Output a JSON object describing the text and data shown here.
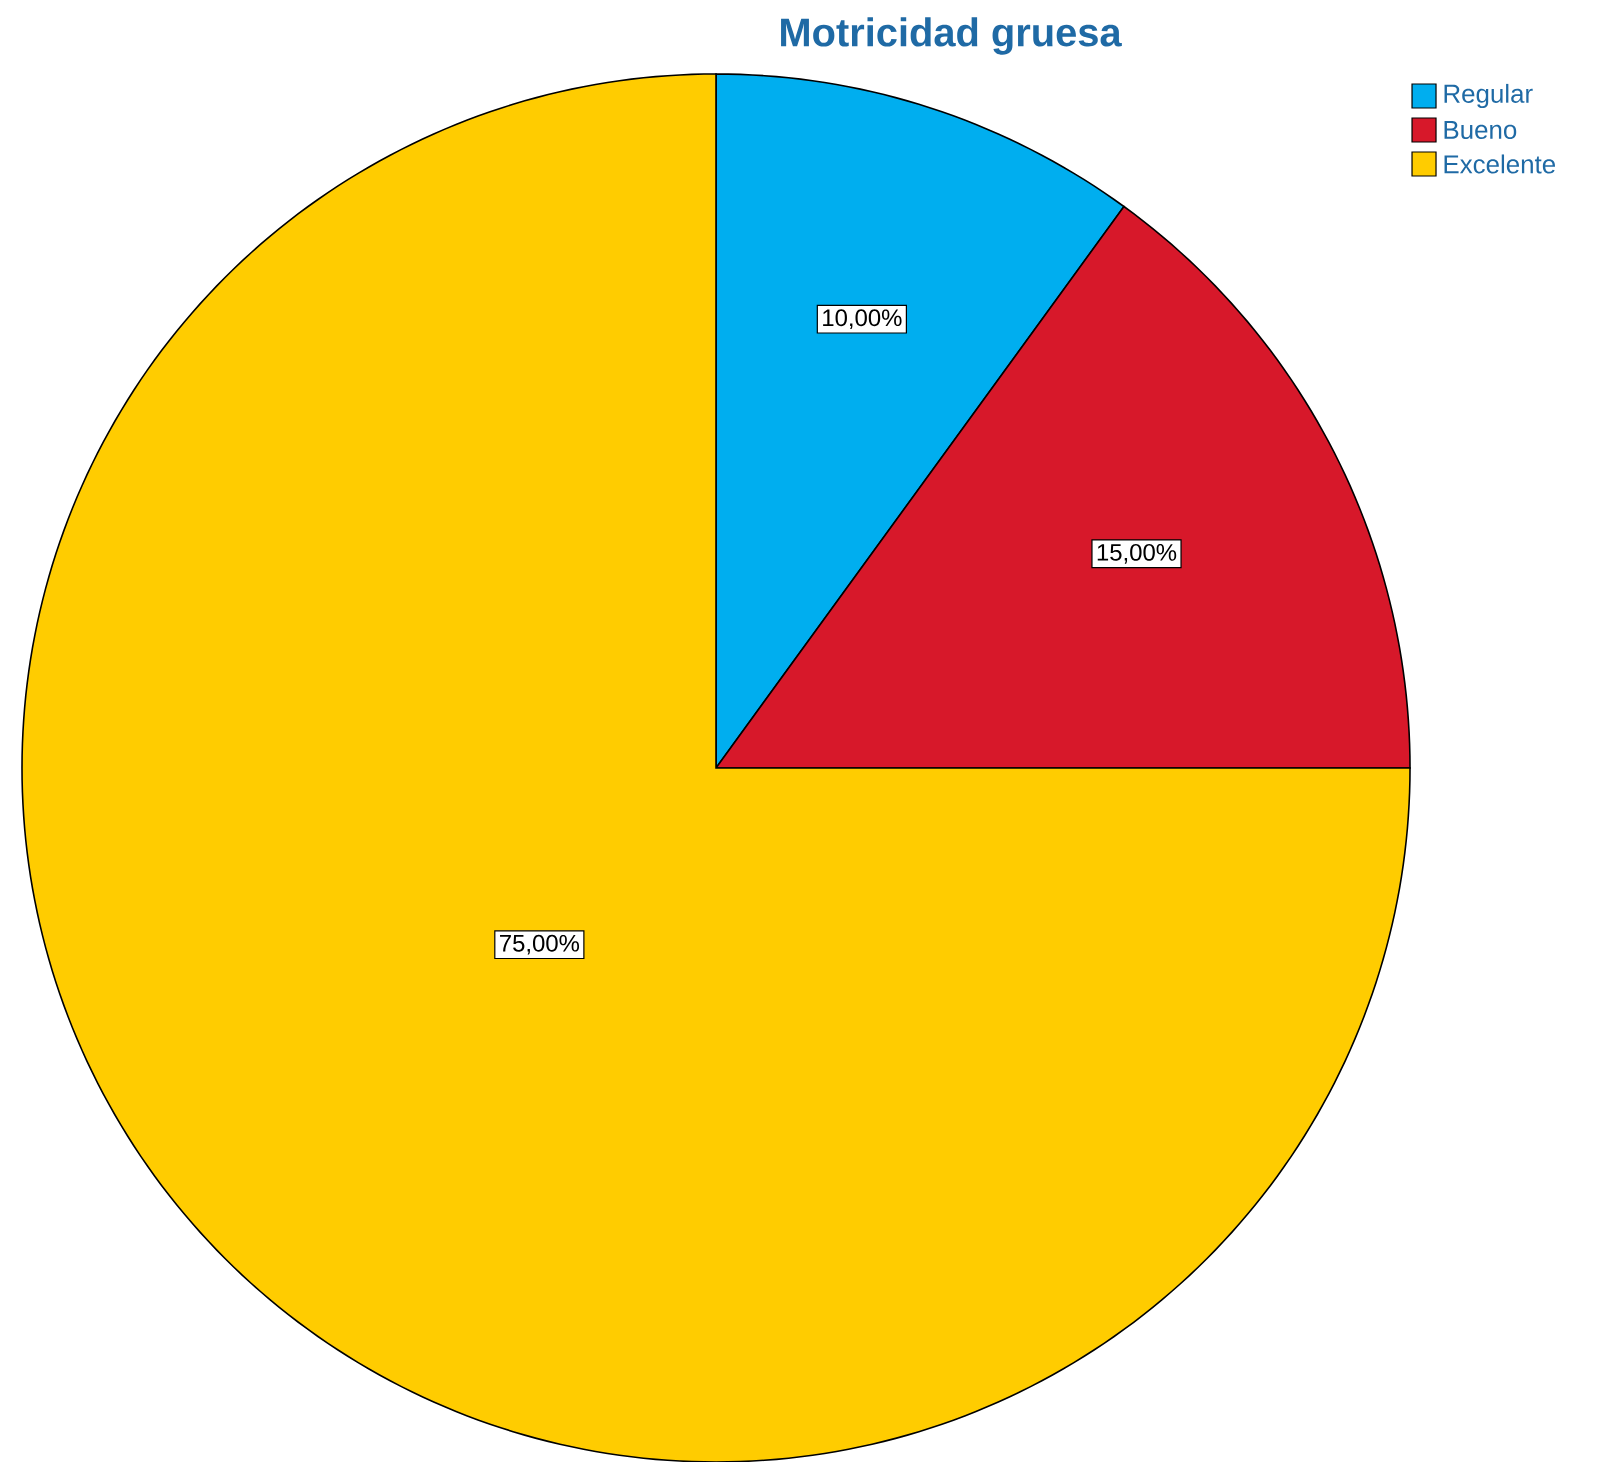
{
  "chart_data": {
    "type": "pie",
    "title": "Motricidad gruesa",
    "categories": [
      "Regular",
      "Bueno",
      "Excelente"
    ],
    "values": [
      10,
      15,
      75
    ],
    "colors": [
      "#00aeef",
      "#d7182a",
      "#ffcc00"
    ],
    "value_labels": [
      "10,00%",
      "15,00%",
      "75,00%"
    ],
    "legend": "top right"
  }
}
